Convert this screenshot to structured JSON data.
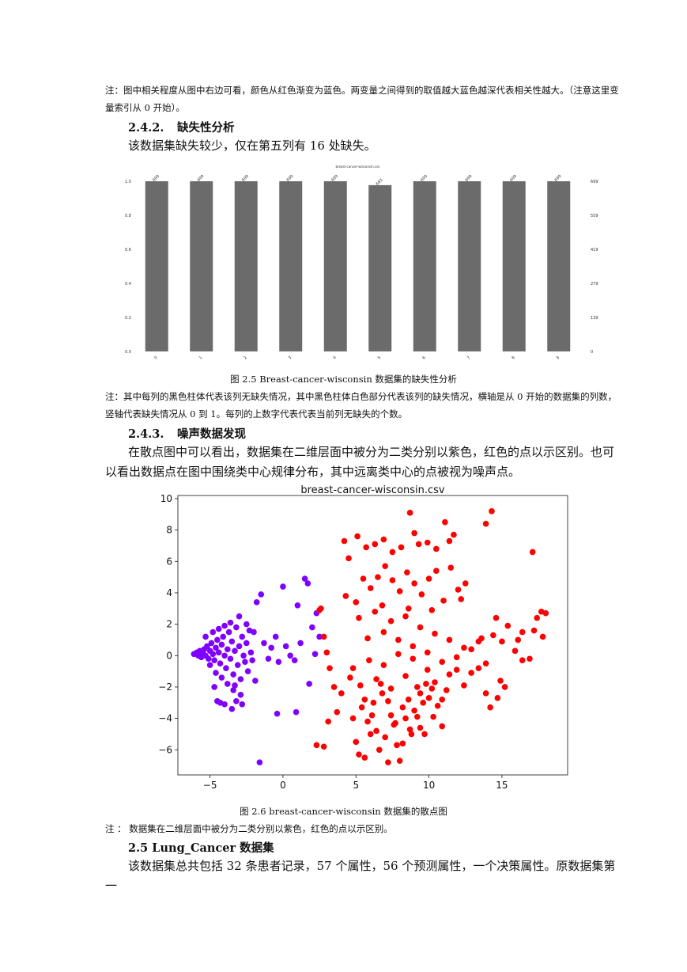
{
  "note_top": "注：图中相关程度从图中右边可看，颜色从红色渐变为蓝色。两变量之间得到的取值越大蓝色越深代表相关性越大。（注意这里变量索引从 0 开始）。",
  "section_242": {
    "num": "2.4.2.",
    "title": "缺失性分析"
  },
  "para_242": "该数据集缺失较少，仅在第五列有 16 处缺失。",
  "missing_chart": {
    "title": "breast-cancer-wisconsin.csv",
    "left_ticks": [
      "0.0",
      "0.2",
      "0.4",
      "0.6",
      "0.8",
      "1.0"
    ],
    "right_ticks": [
      "0",
      "139",
      "279",
      "419",
      "559",
      "699"
    ],
    "chart_data": {
      "type": "bar",
      "title": "breast-cancer-wisconsin.csv",
      "categories": [
        "0",
        "1",
        "2",
        "3",
        "4",
        "5",
        "6",
        "7",
        "8",
        "9"
      ],
      "values": [
        699,
        699,
        699,
        699,
        699,
        683,
        699,
        699,
        699,
        699
      ],
      "ylim": [
        0,
        699
      ],
      "grid": false,
      "bar_color": "#6b6b6b"
    }
  },
  "caption_25": {
    "prefix": "图 2.5",
    "text": "Breast-cancer-wisconsin 数据集的缺失性分析"
  },
  "note_25": "注：其中每列的黑色柱体代表该列无缺失情况，其中黑色柱体白色部分代表该列的缺失情况，横轴是从 0 开始的数据集的列数，竖轴代表缺失情况从 0 到 1。每列的上数字代表代表当前列无缺失的个数。",
  "section_243": {
    "num": "2.4.3.",
    "title": "噪声数据发现"
  },
  "para_243": "在散点图中可以看出，数据集在二维层面中被分为二类分别以紫色，红色的点以示区别。也可以看出数据点在图中围绕类中心规律分布，其中远离类中心的点被视为噪声点。",
  "scatter_chart": {
    "title": "breast-cancer-wisconsin.csv",
    "x_ticks": [
      "−5",
      "0",
      "5",
      "10",
      "15"
    ],
    "y_ticks": [
      "−6",
      "−4",
      "−2",
      "0",
      "2",
      "4",
      "6",
      "8",
      "10"
    ],
    "chart_data": {
      "type": "scatter",
      "title": "breast-cancer-wisconsin.csv",
      "xlim": [
        -7.2,
        19.5
      ],
      "ylim": [
        -7.6,
        10.2
      ],
      "colors": {
        "purple": "#7f00ff",
        "red": "#ff0000"
      },
      "series": [
        {
          "color": "purple",
          "points": [
            [
              -6.1,
              0.1
            ],
            [
              -5.9,
              0.2
            ],
            [
              -5.8,
              0.0
            ],
            [
              -5.7,
              0.3
            ],
            [
              -5.6,
              -0.1
            ],
            [
              -5.5,
              0.2
            ],
            [
              -5.4,
              0.4
            ],
            [
              -5.3,
              0.0
            ],
            [
              -5.2,
              0.6
            ],
            [
              -5.1,
              -0.2
            ],
            [
              -5.0,
              0.3
            ],
            [
              -4.9,
              0.8
            ],
            [
              -4.8,
              0.1
            ],
            [
              -4.7,
              -0.3
            ],
            [
              -4.6,
              0.5
            ],
            [
              -4.5,
              1.0
            ],
            [
              -4.4,
              0.2
            ],
            [
              -4.3,
              -0.5
            ],
            [
              -4.2,
              0.7
            ],
            [
              -4.1,
              1.2
            ],
            [
              -4.0,
              0.0
            ],
            [
              -3.9,
              -0.8
            ],
            [
              -3.8,
              0.4
            ],
            [
              -3.7,
              1.5
            ],
            [
              -3.6,
              -0.2
            ],
            [
              -3.5,
              0.9
            ],
            [
              -3.4,
              -1.2
            ],
            [
              -3.3,
              0.3
            ],
            [
              -3.2,
              1.8
            ],
            [
              -3.1,
              -0.6
            ],
            [
              -3.0,
              0.6
            ],
            [
              -2.9,
              -1.5
            ],
            [
              -2.8,
              1.2
            ],
            [
              -2.7,
              0.0
            ],
            [
              -2.6,
              -0.4
            ],
            [
              -2.5,
              0.8
            ],
            [
              -2.4,
              -1.0
            ],
            [
              -2.3,
              1.6
            ],
            [
              -2.2,
              0.2
            ],
            [
              -2.1,
              -0.3
            ],
            [
              -5.3,
              1.2
            ],
            [
              -5.0,
              -0.6
            ],
            [
              -4.8,
              1.5
            ],
            [
              -4.6,
              -1.1
            ],
            [
              -4.4,
              1.7
            ],
            [
              -4.2,
              -1.4
            ],
            [
              -4.0,
              1.9
            ],
            [
              -3.8,
              -1.8
            ],
            [
              -3.6,
              2.1
            ],
            [
              -3.4,
              -2.2
            ],
            [
              -4.5,
              -2.9
            ],
            [
              -4.3,
              -3.0
            ],
            [
              -4.0,
              -3.1
            ],
            [
              -3.5,
              -3.4
            ],
            [
              -3.2,
              -2.9
            ],
            [
              -2.9,
              -2.5
            ],
            [
              -4.7,
              -2.0
            ],
            [
              -3.0,
              2.5
            ],
            [
              -2.5,
              2.0
            ],
            [
              -2.0,
              1.5
            ],
            [
              -1.8,
              3.4
            ],
            [
              -1.5,
              3.9
            ],
            [
              -1.3,
              0.8
            ],
            [
              -1.0,
              -0.2
            ],
            [
              -0.8,
              0.5
            ],
            [
              -0.5,
              1.2
            ],
            [
              -0.3,
              -0.4
            ],
            [
              0.0,
              4.4
            ],
            [
              0.2,
              0.6
            ],
            [
              0.5,
              0.0
            ],
            [
              0.8,
              -0.3
            ],
            [
              1.0,
              3.2
            ],
            [
              1.2,
              0.8
            ],
            [
              1.5,
              4.9
            ],
            [
              1.7,
              4.6
            ],
            [
              2.0,
              1.8
            ],
            [
              2.2,
              0.1
            ],
            [
              2.3,
              2.7
            ],
            [
              2.5,
              1.2
            ],
            [
              1.8,
              -1.8
            ],
            [
              0.9,
              -3.6
            ],
            [
              -0.4,
              -3.7
            ],
            [
              -1.6,
              -6.8
            ],
            [
              -2.8,
              -3.1
            ],
            [
              -3.3,
              -1.9
            ],
            [
              -1.9,
              -1.6
            ]
          ]
        },
        {
          "color": "red",
          "points": [
            [
              2.5,
              2.9
            ],
            [
              2.6,
              3.0
            ],
            [
              2.8,
              1.2
            ],
            [
              3.0,
              0.2
            ],
            [
              3.2,
              -0.8
            ],
            [
              3.5,
              -2.0
            ],
            [
              3.7,
              -3.6
            ],
            [
              2.3,
              -5.7
            ],
            [
              2.8,
              -5.8
            ],
            [
              3.1,
              -4.2
            ],
            [
              4.0,
              -2.4
            ],
            [
              4.3,
              3.8
            ],
            [
              4.6,
              -1.4
            ],
            [
              4.8,
              -4.0
            ],
            [
              5.0,
              -5.5
            ],
            [
              5.2,
              -6.3
            ],
            [
              5.4,
              -3.3
            ],
            [
              5.6,
              -6.5
            ],
            [
              5.8,
              -4.2
            ],
            [
              6.0,
              -5.0
            ],
            [
              6.2,
              -3.0
            ],
            [
              6.4,
              -4.8
            ],
            [
              6.6,
              -6.0
            ],
            [
              6.8,
              -2.4
            ],
            [
              7.0,
              -5.2
            ],
            [
              7.2,
              -6.8
            ],
            [
              7.4,
              -3.8
            ],
            [
              7.6,
              -4.4
            ],
            [
              7.8,
              -5.7
            ],
            [
              8.0,
              -6.7
            ],
            [
              8.2,
              -3.3
            ],
            [
              8.4,
              -4.0
            ],
            [
              8.6,
              -2.8
            ],
            [
              8.8,
              -5.0
            ],
            [
              9.0,
              -3.5
            ],
            [
              9.2,
              -2.0
            ],
            [
              9.4,
              -4.6
            ],
            [
              9.6,
              -3.0
            ],
            [
              9.8,
              -1.8
            ],
            [
              10.0,
              -2.7
            ],
            [
              10.3,
              -3.9
            ],
            [
              10.6,
              -3.2
            ],
            [
              10.9,
              -4.5
            ],
            [
              11.2,
              -2.2
            ],
            [
              4.2,
              7.3
            ],
            [
              4.5,
              6.2
            ],
            [
              5.1,
              7.6
            ],
            [
              5.7,
              6.9
            ],
            [
              6.3,
              7.1
            ],
            [
              6.9,
              7.4
            ],
            [
              7.5,
              6.6
            ],
            [
              8.1,
              6.9
            ],
            [
              8.7,
              9.1
            ],
            [
              9.0,
              7.8
            ],
            [
              9.3,
              7.1
            ],
            [
              9.9,
              7.2
            ],
            [
              10.5,
              6.8
            ],
            [
              11.1,
              8.5
            ],
            [
              11.4,
              7.3
            ],
            [
              11.7,
              7.7
            ],
            [
              13.9,
              8.4
            ],
            [
              14.3,
              9.2
            ],
            [
              17.1,
              6.6
            ],
            [
              5.5,
              4.9
            ],
            [
              6.0,
              4.3
            ],
            [
              6.5,
              5.0
            ],
            [
              7.0,
              5.7
            ],
            [
              7.5,
              4.8
            ],
            [
              8.0,
              4.1
            ],
            [
              8.5,
              5.3
            ],
            [
              9.0,
              4.6
            ],
            [
              9.5,
              3.9
            ],
            [
              10.0,
              4.9
            ],
            [
              10.5,
              5.4
            ],
            [
              11.0,
              3.5
            ],
            [
              11.5,
              5.6
            ],
            [
              12.0,
              4.2
            ],
            [
              12.5,
              4.6
            ],
            [
              5.2,
              2.4
            ],
            [
              5.8,
              1.1
            ],
            [
              6.3,
              2.8
            ],
            [
              6.9,
              1.5
            ],
            [
              7.4,
              2.2
            ],
            [
              7.9,
              1.0
            ],
            [
              8.4,
              2.5
            ],
            [
              8.9,
              0.6
            ],
            [
              9.4,
              1.8
            ],
            [
              9.9,
              0.2
            ],
            [
              10.4,
              1.4
            ],
            [
              10.9,
              -0.4
            ],
            [
              11.4,
              1.0
            ],
            [
              11.9,
              -0.9
            ],
            [
              12.4,
              0.5
            ],
            [
              12.9,
              -1.1
            ],
            [
              13.4,
              0.9
            ],
            [
              13.9,
              -0.5
            ],
            [
              14.4,
              1.3
            ],
            [
              14.9,
              -1.6
            ],
            [
              15.4,
              1.9
            ],
            [
              15.9,
              0.3
            ],
            [
              16.4,
              1.5
            ],
            [
              16.9,
              -0.2
            ],
            [
              17.4,
              2.4
            ],
            [
              17.8,
              1.2
            ],
            [
              18.0,
              2.7
            ],
            [
              17.2,
              1.6
            ],
            [
              4.8,
              -0.8
            ],
            [
              5.3,
              -1.9
            ],
            [
              5.9,
              -0.3
            ],
            [
              6.4,
              -1.5
            ],
            [
              6.9,
              -0.6
            ],
            [
              7.4,
              -2.1
            ],
            [
              7.9,
              0.1
            ],
            [
              8.4,
              -1.3
            ],
            [
              8.9,
              -0.2
            ],
            [
              9.4,
              -2.4
            ],
            [
              9.9,
              -0.9
            ],
            [
              10.4,
              -1.7
            ],
            [
              10.9,
              -2.8
            ],
            [
              11.4,
              -1.2
            ],
            [
              11.9,
              -0.1
            ],
            [
              12.4,
              -1.9
            ],
            [
              12.9,
              0.4
            ],
            [
              13.4,
              -0.8
            ],
            [
              13.9,
              -2.4
            ],
            [
              14.2,
              -3.3
            ],
            [
              14.7,
              -2.7
            ],
            [
              15.2,
              -2.0
            ],
            [
              16.4,
              -0.3
            ],
            [
              5.6,
              -2.8
            ],
            [
              6.1,
              -3.8
            ],
            [
              6.7,
              -1.8
            ],
            [
              7.2,
              -2.9
            ],
            [
              7.7,
              -4.3
            ],
            [
              8.2,
              -5.6
            ],
            [
              8.7,
              -4.7
            ],
            [
              9.2,
              -3.9
            ],
            [
              9.7,
              -5.0
            ],
            [
              10.2,
              -2.1
            ],
            [
              5.0,
              3.4
            ],
            [
              6.8,
              3.2
            ],
            [
              8.6,
              3.0
            ],
            [
              10.2,
              2.9
            ],
            [
              12.2,
              3.6
            ],
            [
              13.6,
              1.1
            ],
            [
              14.6,
              2.4
            ],
            [
              15.0,
              0.9
            ],
            [
              16.1,
              1.0
            ],
            [
              17.7,
              2.8
            ]
          ]
        }
      ]
    }
  },
  "caption_26": {
    "prefix": "图 2.6",
    "text": "breast-cancer-wisconsin 数据集的散点图"
  },
  "note_26": "注 ： 数据集在二维层面中被分为二类分别以紫色，红色的点以示区别。",
  "section_25": {
    "num": "2.5",
    "title": "Lung_Cancer 数据集"
  },
  "para_25": "该数据集总共包括 32 条患者记录，57 个属性，56 个预测属性，一个决策属性。原数据集第一"
}
